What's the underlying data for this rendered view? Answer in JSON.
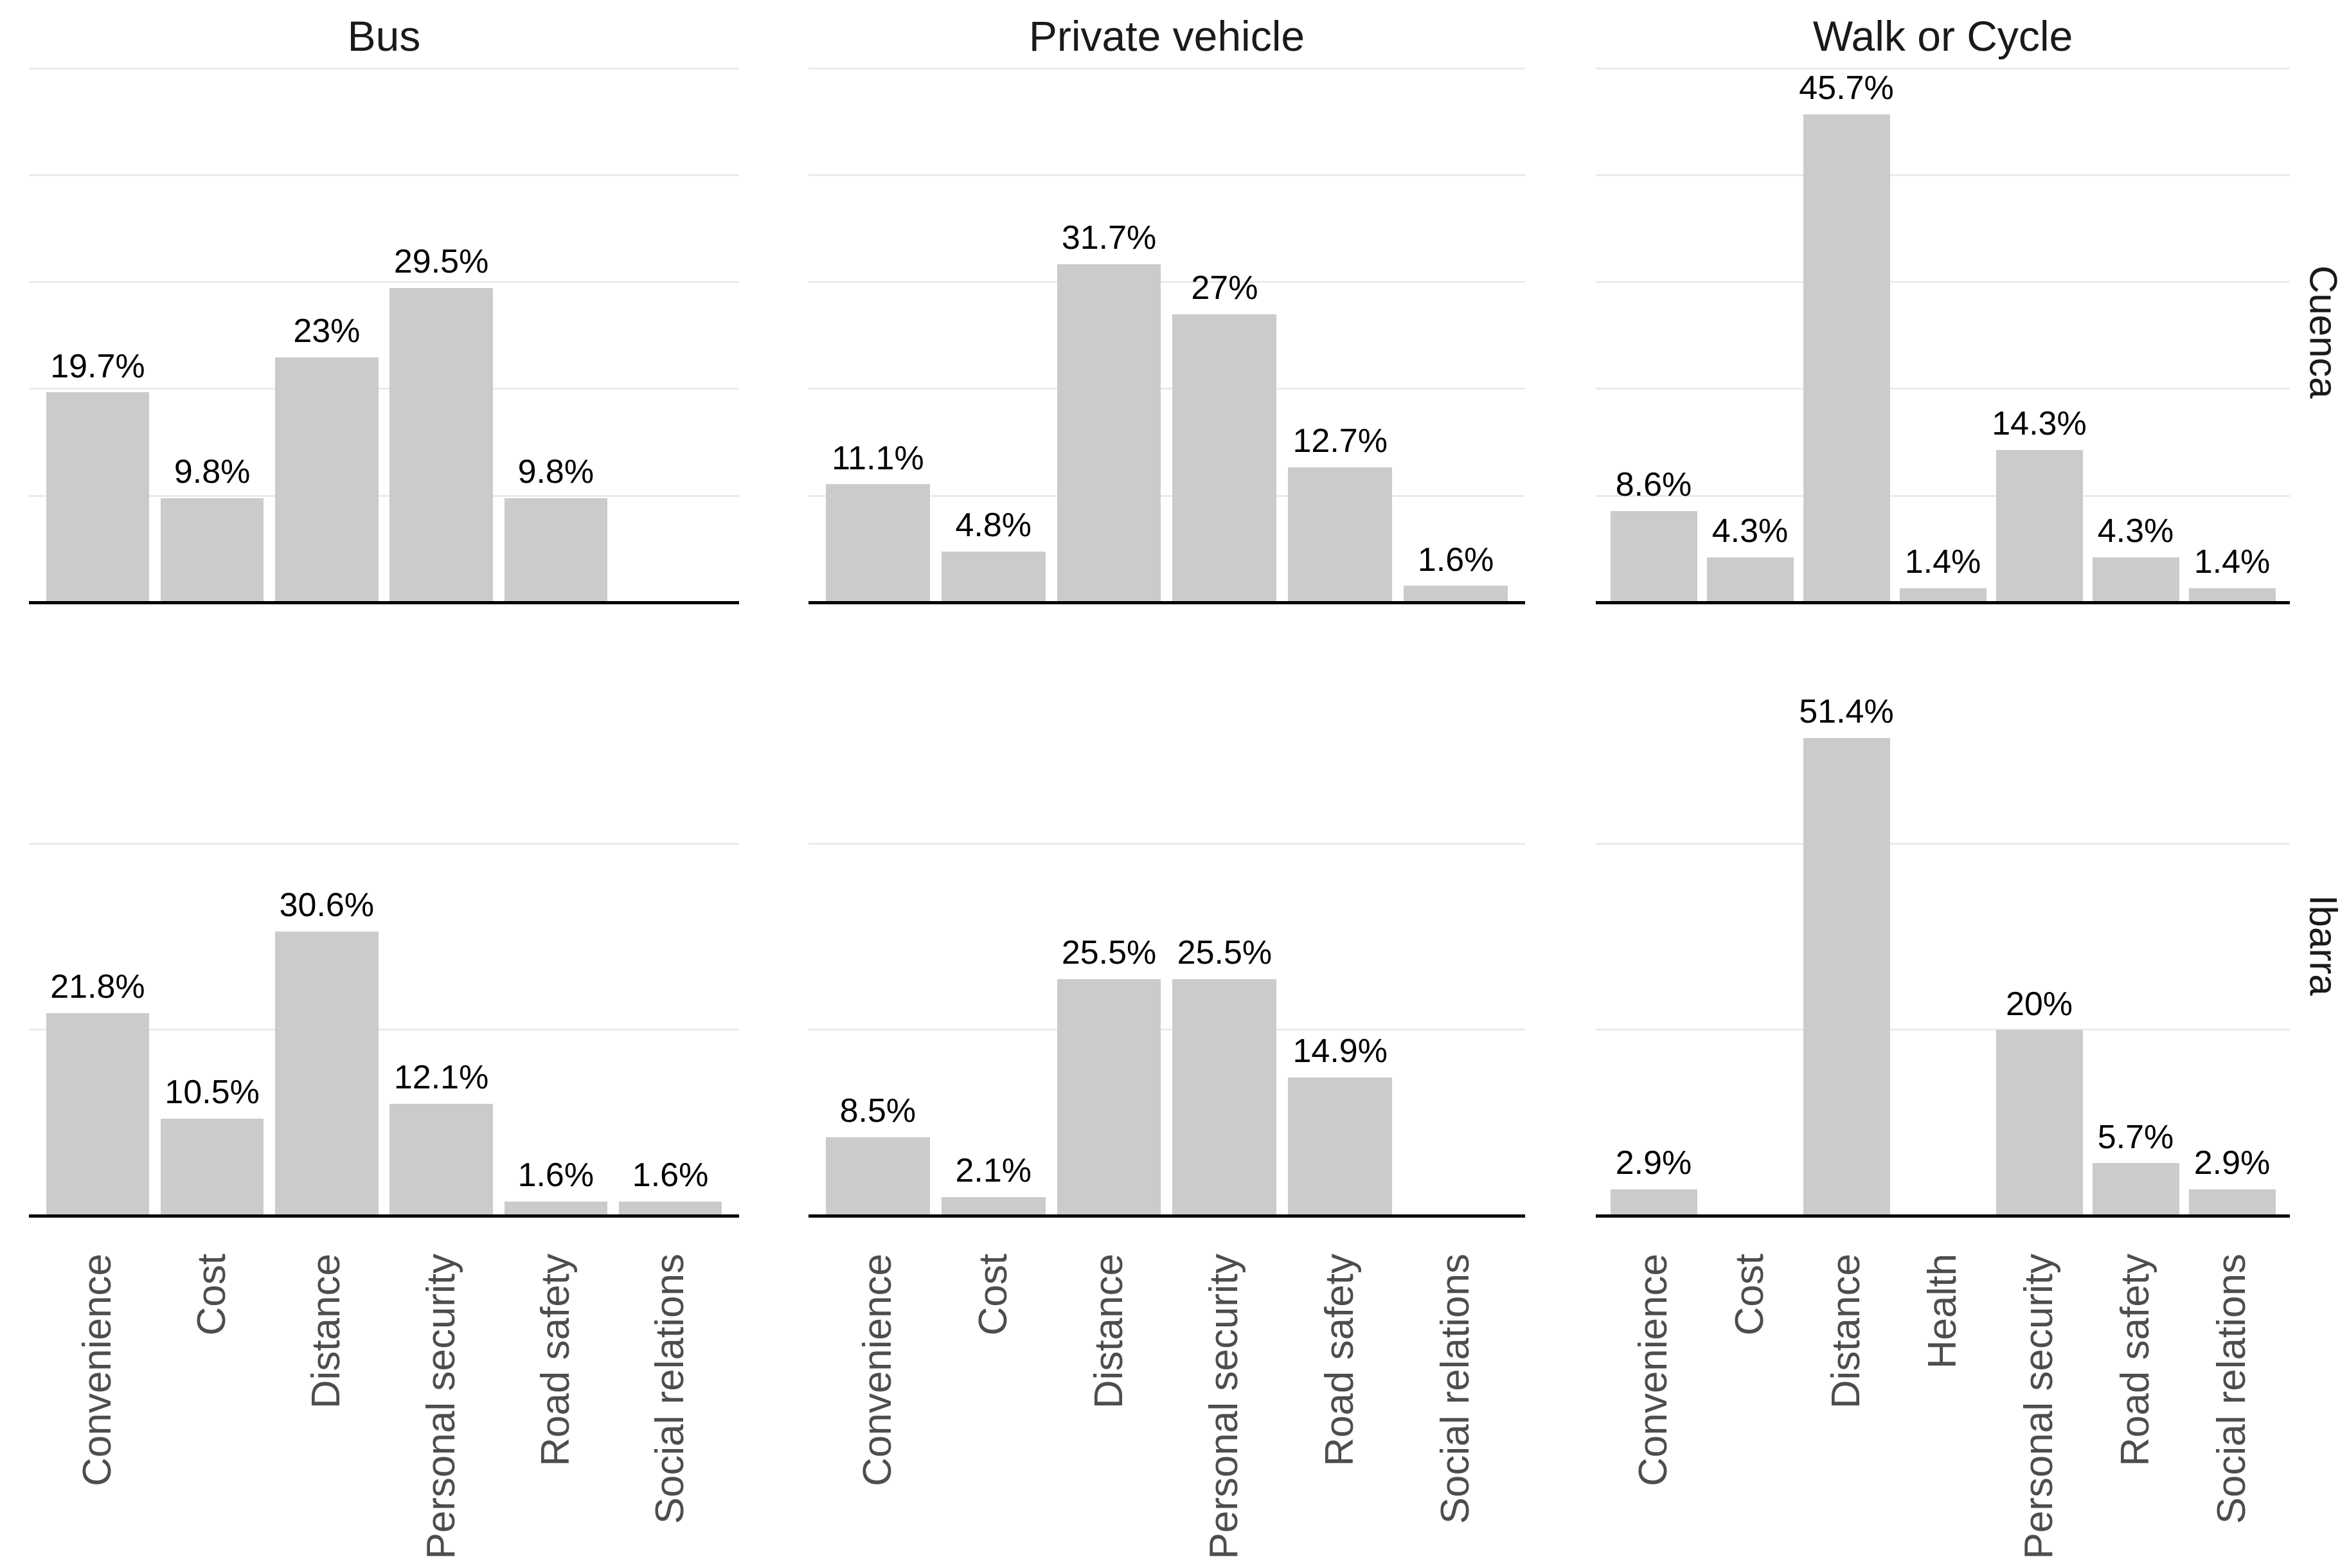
{
  "chart_data": {
    "type": "bar",
    "title": "",
    "legend": "none",
    "grid": "horizontal-only",
    "facet_cols": [
      {
        "label": "Bus",
        "categories": [
          "Convenience",
          "Cost",
          "Distance",
          "Personal security",
          "Road safety",
          "Social relations"
        ]
      },
      {
        "label": "Private vehicle",
        "categories": [
          "Convenience",
          "Cost",
          "Distance",
          "Personal security",
          "Road safety",
          "Social relations"
        ]
      },
      {
        "label": "Walk or Cycle",
        "categories": [
          "Convenience",
          "Cost",
          "Distance",
          "Health",
          "Personal security",
          "Road safety",
          "Social relations"
        ]
      }
    ],
    "facet_rows": [
      {
        "label": "Cuenca",
        "ymax": 50.7,
        "gridlines_pct": [
          10,
          20,
          30,
          40,
          50
        ]
      },
      {
        "label": "Ibarra",
        "ymax": 58.2,
        "gridlines_pct": [
          20,
          40
        ]
      }
    ],
    "values_pct": {
      "Cuenca": {
        "Bus": [
          19.7,
          9.8,
          23,
          29.5,
          9.8,
          null
        ],
        "Private vehicle": [
          11.1,
          4.8,
          31.7,
          27,
          12.7,
          1.6
        ],
        "Walk or Cycle": [
          8.6,
          4.3,
          45.7,
          1.4,
          14.3,
          4.3,
          1.4
        ]
      },
      "Ibarra": {
        "Bus": [
          21.8,
          10.5,
          30.6,
          12.1,
          1.6,
          1.6
        ],
        "Private vehicle": [
          8.5,
          2.1,
          25.5,
          25.5,
          14.9,
          null
        ],
        "Walk or Cycle": [
          2.9,
          null,
          51.4,
          null,
          20,
          5.7,
          2.9
        ]
      }
    },
    "value_labels": {
      "Cuenca": {
        "Bus": [
          "19.7%",
          "9.8%",
          "23%",
          "29.5%",
          "9.8%",
          null
        ],
        "Private vehicle": [
          "11.1%",
          "4.8%",
          "31.7%",
          "27%",
          "12.7%",
          "1.6%"
        ],
        "Walk or Cycle": [
          "8.6%",
          "4.3%",
          "45.7%",
          "1.4%",
          "14.3%",
          "4.3%",
          "1.4%"
        ]
      },
      "Ibarra": {
        "Bus": [
          "21.8%",
          "10.5%",
          "30.6%",
          "12.1%",
          "1.6%",
          "1.6%"
        ],
        "Private vehicle": [
          "8.5%",
          "2.1%",
          "25.5%",
          "25.5%",
          "14.9%",
          null
        ],
        "Walk or Cycle": [
          "2.9%",
          null,
          "51.4%",
          null,
          "20%",
          "5.7%",
          "2.9%"
        ]
      }
    },
    "colors": {
      "bar_fill": "#cbcbcb",
      "gridline": "#ebebeb",
      "axis_line": "#000000",
      "axis_text": "#4d4d4d",
      "facet_text": "#1a1a1a",
      "value_text": "#000000"
    }
  }
}
